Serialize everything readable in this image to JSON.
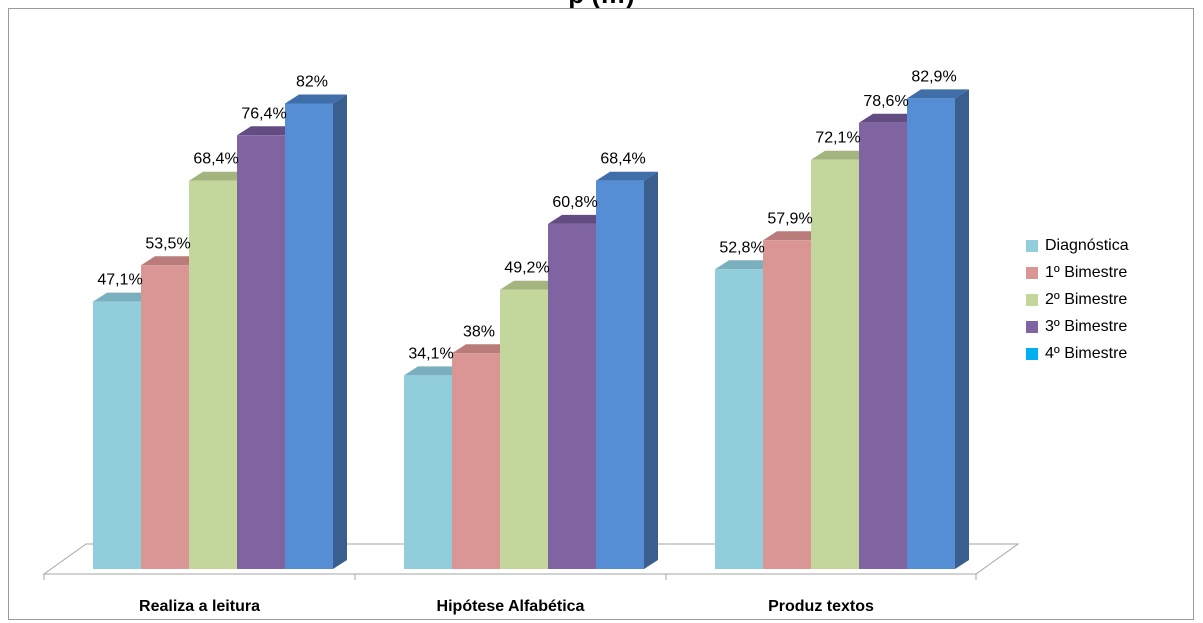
{
  "chart_data": {
    "type": "bar",
    "title": "p (…)",
    "categories": [
      "Realiza a leitura",
      "Hipótese Alfabética",
      "Produz textos"
    ],
    "series": [
      {
        "name": "Diagnóstica",
        "values": [
          47.1,
          34.1,
          52.8
        ],
        "labels": [
          "47,1%",
          "34,1%",
          "52,8%"
        ],
        "color": "#92CDDC",
        "side": "#6FA6B3",
        "top": "#7AB0BE"
      },
      {
        "name": "1º Bimestre",
        "values": [
          53.5,
          38,
          57.9
        ],
        "labels": [
          "53,5%",
          "38%",
          "57,9%"
        ],
        "color": "#D99694",
        "side": "#B57472",
        "top": "#B97C7A"
      },
      {
        "name": "2º Bimestre",
        "values": [
          68.4,
          49.2,
          72.1
        ],
        "labels": [
          "68,4%",
          "49,2%",
          "72,1%"
        ],
        "color": "#C3D69B",
        "side": "#9EAF78",
        "top": "#A4B47F"
      },
      {
        "name": "3º Bimestre",
        "values": [
          76.4,
          60.8,
          78.6
        ],
        "labels": [
          "76,4%",
          "60,8%",
          "78,6%"
        ],
        "color": "#8064A2",
        "side": "#5E4A79",
        "top": "#634C82"
      },
      {
        "name": "4º Bimestre",
        "values": [
          82,
          68.4,
          82.9
        ],
        "labels": [
          "82%",
          "68,4%",
          "82,9%"
        ],
        "color": "#558ED5",
        "side": "#3A5F8E",
        "top": "#3F6EA8",
        "legend_color": "#00B0F0"
      }
    ],
    "ylim": [
      0,
      100
    ],
    "xlabel": "",
    "ylabel": "",
    "grid": false,
    "legend": "right"
  }
}
